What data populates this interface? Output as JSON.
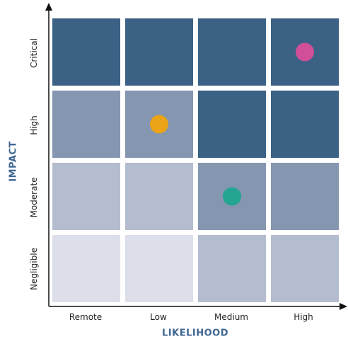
{
  "y_axis_title": "IMPACT",
  "x_axis_title": "LIKELIHOOD",
  "rows": [
    "Critical",
    "High",
    "Moderate",
    "Negligible"
  ],
  "columns": [
    "Remote",
    "Low",
    "Medium",
    "High"
  ],
  "colors": {
    "severe": "#3b6285",
    "high": "#8596b0",
    "medium": "#b4bccf",
    "low": "#dcdfea",
    "axis": "#111111",
    "title": "#3f6691"
  },
  "cells": [
    [
      "severe",
      "severe",
      "severe",
      "severe"
    ],
    [
      "high",
      "high",
      "severe",
      "severe"
    ],
    [
      "medium",
      "medium",
      "high",
      "high"
    ],
    [
      "low",
      "low",
      "medium",
      "medium"
    ]
  ],
  "markers": [
    {
      "row": "Critical",
      "column": "High",
      "color": "#d14f98"
    },
    {
      "row": "High",
      "column": "Low",
      "color": "#eba416"
    },
    {
      "row": "Moderate",
      "column": "Medium",
      "color": "#24a593"
    }
  ]
}
